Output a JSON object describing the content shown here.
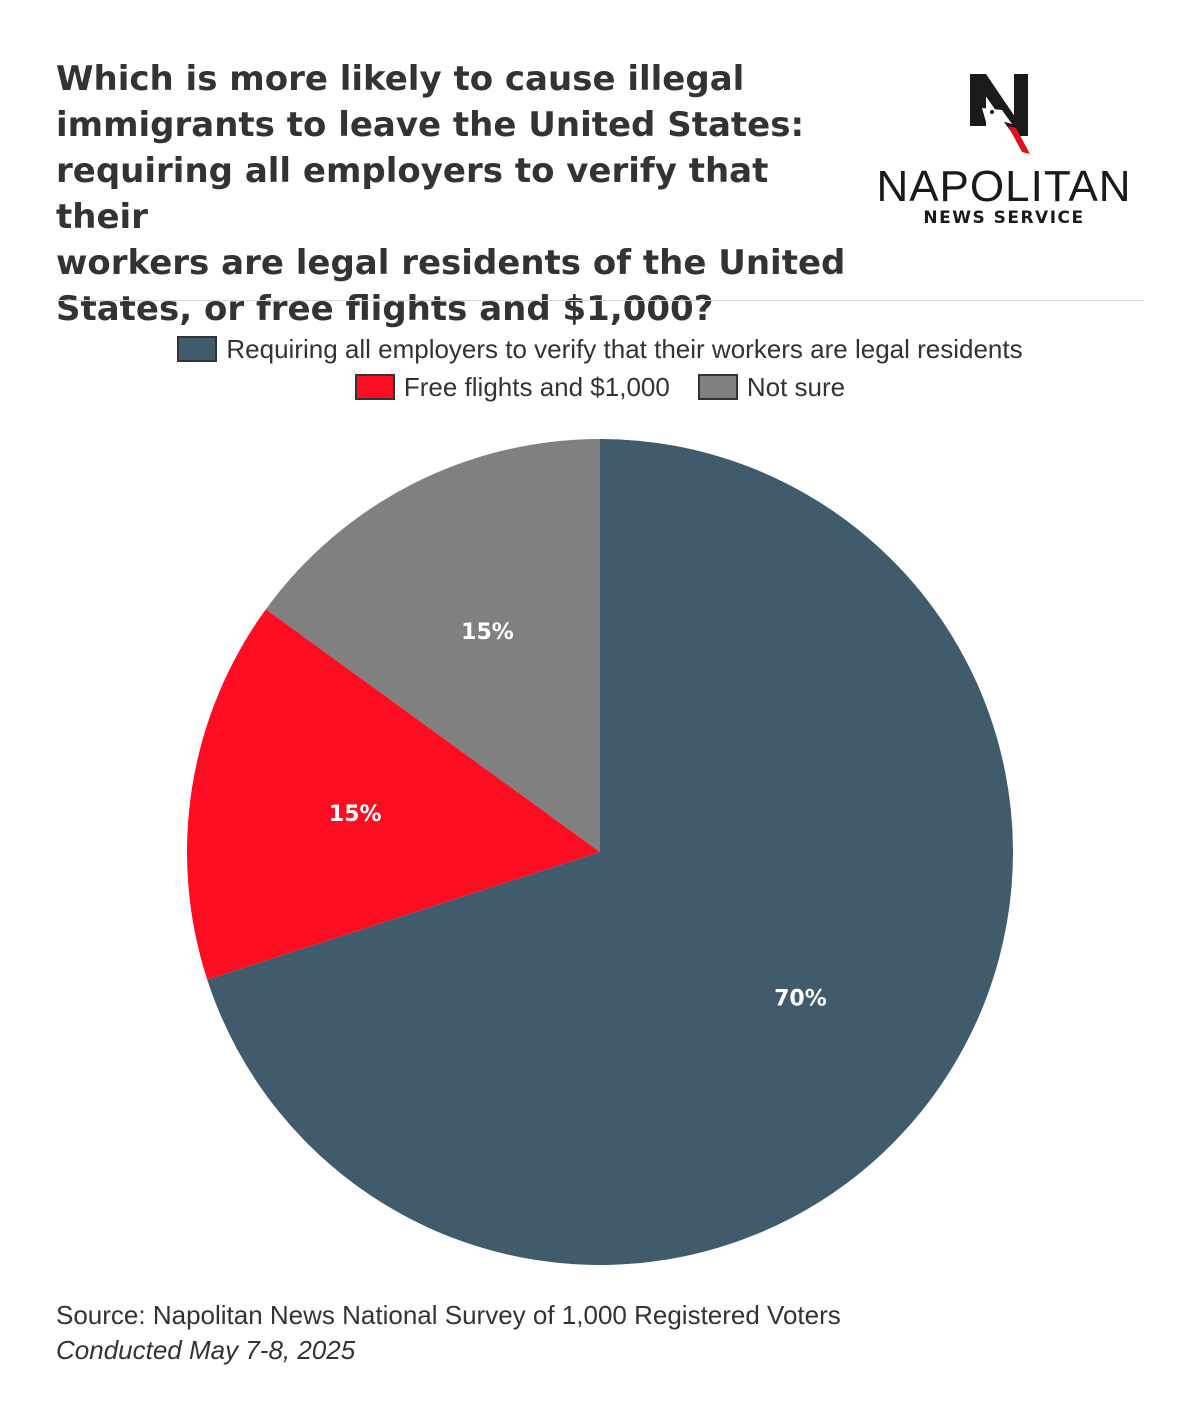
{
  "title": "Which is more likely to cause illegal\nimmigrants to leave the United States:\nrequiring all employers to verify that their\nworkers are legal residents of the United\nStates, or free flights and $1,000?",
  "logo": {
    "name": "NAPOLITAN",
    "subtitle": "NEWS SERVICE",
    "mark_letter": "N",
    "colors": {
      "dark": "#1a1a1a",
      "accent": "#e0101f"
    }
  },
  "chart_data": {
    "type": "pie",
    "title": "Which is more likely to cause illegal immigrants to leave the United States: requiring all employers to verify that their workers are legal residents of the United States, or free flights and $1,000?",
    "legend_position": "top-center",
    "slices": [
      {
        "name": "Requiring all employers to verify that their workers are legal residents",
        "value": 70,
        "label": "70%",
        "color": "#3f5b6c"
      },
      {
        "name": "Free flights and $1,000",
        "value": 15,
        "label": "15%",
        "color": "#fc0d22"
      },
      {
        "name": "Not sure",
        "value": 15,
        "label": "15%",
        "color": "#808080"
      }
    ]
  },
  "source": {
    "line1": "Source: Napolitan News National Survey of 1,000 Registered Voters",
    "line2": "Conducted May 7-8, 2025"
  }
}
